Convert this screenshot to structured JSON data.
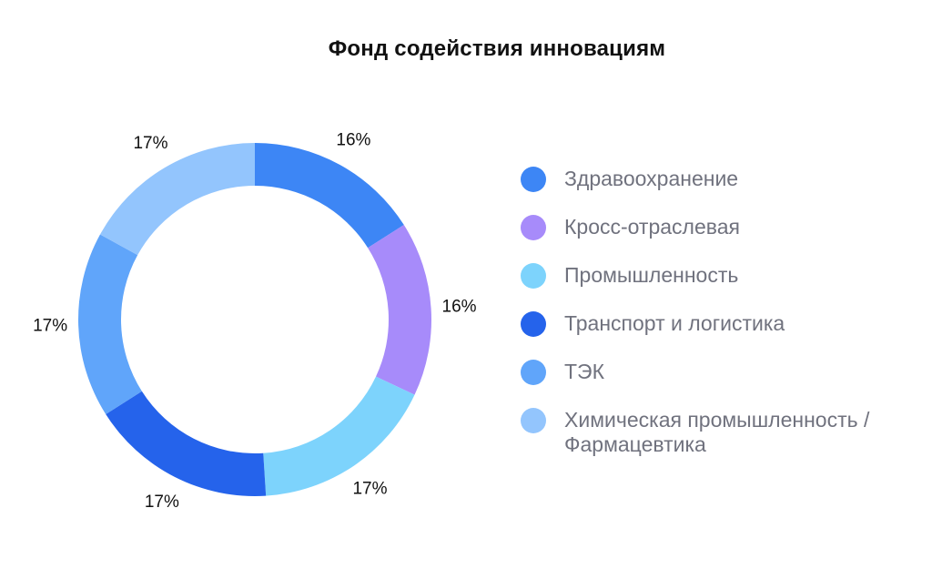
{
  "chart_data": {
    "type": "pie",
    "title": "Фонд содействия инновациям",
    "categories": [
      "Здравоохранение",
      "Кросс-отраслевая",
      "Промышленность",
      "Транспорт и логистика",
      "ТЭК",
      "Химическая промышленность / Фармацевтика"
    ],
    "values": [
      16,
      16,
      17,
      17,
      17,
      17
    ],
    "labels": [
      "16%",
      "16%",
      "17%",
      "17%",
      "17%",
      "17%"
    ],
    "colors": [
      "#3D86F5",
      "#A78BFA",
      "#7DD3FC",
      "#2563EB",
      "#60A5FA",
      "#93C5FD"
    ],
    "legend_position": "right",
    "donut": true
  }
}
